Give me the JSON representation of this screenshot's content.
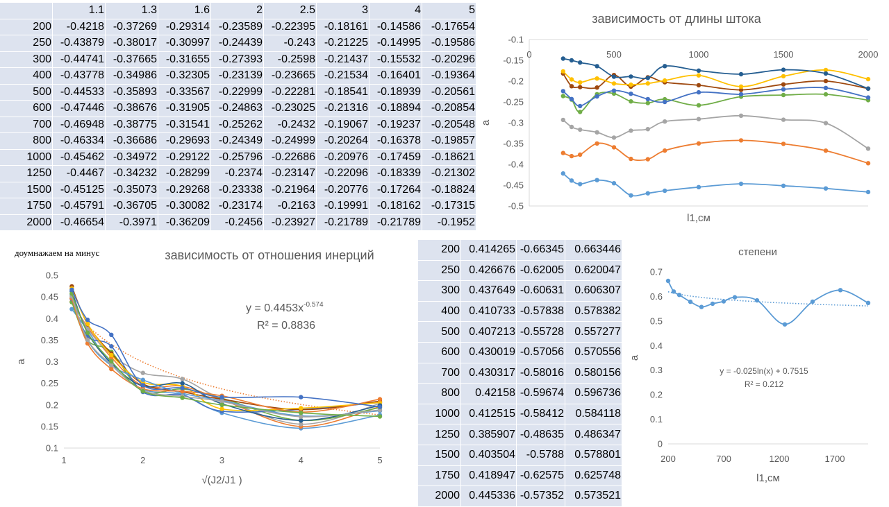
{
  "table1": {
    "columns": [
      "1.1",
      "1.3",
      "1.6",
      "2",
      "2.5",
      "3",
      "4",
      "5"
    ],
    "rows": [
      {
        "l": "200",
        "v": [
          "-0.4218",
          "-0.37269",
          "-0.29314",
          "-0.23589",
          "-0.22395",
          "-0.18161",
          "-0.14586",
          "-0.17654"
        ]
      },
      {
        "l": "250",
        "v": [
          "-0.43879",
          "-0.38017",
          "-0.30997",
          "-0.24439",
          "-0.243",
          "-0.21225",
          "-0.14995",
          "-0.19586"
        ]
      },
      {
        "l": "300",
        "v": [
          "-0.44741",
          "-0.37665",
          "-0.31655",
          "-0.27393",
          "-0.2598",
          "-0.21437",
          "-0.15532",
          "-0.20296"
        ]
      },
      {
        "l": "400",
        "v": [
          "-0.43778",
          "-0.34986",
          "-0.32305",
          "-0.23139",
          "-0.23665",
          "-0.21534",
          "-0.16401",
          "-0.19364"
        ]
      },
      {
        "l": "500",
        "v": [
          "-0.44533",
          "-0.35893",
          "-0.33567",
          "-0.22999",
          "-0.22281",
          "-0.18541",
          "-0.18939",
          "-0.20561"
        ]
      },
      {
        "l": "600",
        "v": [
          "-0.47446",
          "-0.38676",
          "-0.31905",
          "-0.24863",
          "-0.23025",
          "-0.21316",
          "-0.18894",
          "-0.20854"
        ]
      },
      {
        "l": "700",
        "v": [
          "-0.46948",
          "-0.38775",
          "-0.31541",
          "-0.25262",
          "-0.2432",
          "-0.19067",
          "-0.19237",
          "-0.20548"
        ]
      },
      {
        "l": "800",
        "v": [
          "-0.46334",
          "-0.36686",
          "-0.29693",
          "-0.24349",
          "-0.24999",
          "-0.20264",
          "-0.16378",
          "-0.19857"
        ]
      },
      {
        "l": "1000",
        "v": [
          "-0.45462",
          "-0.34972",
          "-0.29122",
          "-0.25796",
          "-0.22686",
          "-0.20976",
          "-0.17459",
          "-0.18621"
        ]
      },
      {
        "l": "1250",
        "v": [
          "-0.4467",
          "-0.34232",
          "-0.28299",
          "-0.2374",
          "-0.23147",
          "-0.22096",
          "-0.18339",
          "-0.21302"
        ]
      },
      {
        "l": "1500",
        "v": [
          "-0.45125",
          "-0.35073",
          "-0.29268",
          "-0.23338",
          "-0.21964",
          "-0.20776",
          "-0.17264",
          "-0.18824"
        ]
      },
      {
        "l": "1750",
        "v": [
          "-0.45791",
          "-0.36705",
          "-0.30082",
          "-0.23174",
          "-0.2163",
          "-0.19991",
          "-0.18162",
          "-0.17315"
        ]
      },
      {
        "l": "2000",
        "v": [
          "-0.46654",
          "-0.3971",
          "-0.36209",
          "-0.2456",
          "-0.23927",
          "-0.21789",
          "-0.21789",
          "-0.1952"
        ]
      }
    ]
  },
  "table2": {
    "rows": [
      [
        "200",
        "0.414265",
        "-0.66345",
        "0.663446"
      ],
      [
        "250",
        "0.426676",
        "-0.62005",
        "0.620047"
      ],
      [
        "300",
        "0.437649",
        "-0.60631",
        "0.606307"
      ],
      [
        "400",
        "0.410733",
        "-0.57838",
        "0.578382"
      ],
      [
        "500",
        "0.407213",
        "-0.55728",
        "0.557277"
      ],
      [
        "600",
        "0.430019",
        "-0.57056",
        "0.570556"
      ],
      [
        "700",
        "0.430317",
        "-0.58016",
        "0.580156"
      ],
      [
        "800",
        "0.42158",
        "-0.59674",
        "0.596736"
      ],
      [
        "1000",
        "0.412515",
        "-0.58412",
        "0.584118"
      ],
      [
        "1250",
        "0.385907",
        "-0.48635",
        "0.486347"
      ],
      [
        "1500",
        "0.403504",
        "-0.5788",
        "0.578801"
      ],
      [
        "1750",
        "0.418947",
        "-0.62575",
        "0.625748"
      ],
      [
        "2000",
        "0.445336",
        "-0.57352",
        "0.573521"
      ]
    ]
  },
  "note": "доумнажаем на минус",
  "colors": {
    "series": [
      "#5b9bd5",
      "#ed7d31",
      "#a5a5a5",
      "#70ad47",
      "#4472c4",
      "#9e480e",
      "#ffc000",
      "#255e91"
    ],
    "axis": "#d9d9d9",
    "text": "#595959"
  },
  "chart_data": [
    {
      "type": "line",
      "title": "зависимость от длины штока",
      "xlabel": "l1,см",
      "ylabel": "a",
      "xlim": [
        0,
        2000
      ],
      "ylim": [
        -0.5,
        -0.1
      ],
      "xticks": [
        0,
        500,
        1000,
        1500,
        2000
      ],
      "yticks": [
        -0.1,
        -0.15,
        -0.2,
        -0.25,
        -0.3,
        -0.35,
        -0.4,
        -0.45,
        -0.5
      ],
      "x": [
        200,
        250,
        300,
        400,
        500,
        600,
        700,
        800,
        1000,
        1250,
        1500,
        1750,
        2000
      ],
      "series": [
        {
          "values": [
            -0.4218,
            -0.43879,
            -0.44741,
            -0.43778,
            -0.44533,
            -0.47446,
            -0.46948,
            -0.46334,
            -0.45462,
            -0.4467,
            -0.45125,
            -0.45791,
            -0.46654
          ]
        },
        {
          "values": [
            -0.37269,
            -0.38017,
            -0.37665,
            -0.34986,
            -0.35893,
            -0.38676,
            -0.38775,
            -0.36686,
            -0.34972,
            -0.34232,
            -0.35073,
            -0.36705,
            -0.3971
          ]
        },
        {
          "values": [
            -0.29314,
            -0.30997,
            -0.31655,
            -0.32305,
            -0.33567,
            -0.31905,
            -0.31541,
            -0.29693,
            -0.29122,
            -0.28299,
            -0.29268,
            -0.30082,
            -0.36209
          ]
        },
        {
          "values": [
            -0.23589,
            -0.24439,
            -0.27393,
            -0.23139,
            -0.22999,
            -0.24863,
            -0.25262,
            -0.24349,
            -0.25796,
            -0.2374,
            -0.23338,
            -0.23174,
            -0.2456
          ]
        },
        {
          "values": [
            -0.22395,
            -0.243,
            -0.2598,
            -0.23665,
            -0.22281,
            -0.23025,
            -0.2432,
            -0.24999,
            -0.22686,
            -0.23147,
            -0.21964,
            -0.2163,
            -0.23927
          ]
        },
        {
          "values": [
            -0.18161,
            -0.21225,
            -0.21437,
            -0.21534,
            -0.18541,
            -0.21316,
            -0.19067,
            -0.20264,
            -0.20976,
            -0.22096,
            -0.20776,
            -0.19991,
            -0.21789
          ]
        },
        {
          "values": [
            -0.17654,
            -0.19586,
            -0.20296,
            -0.19364,
            -0.20561,
            -0.20854,
            -0.20548,
            -0.19857,
            -0.18621,
            -0.21302,
            -0.18824,
            -0.17315,
            -0.1952
          ]
        },
        {
          "values": [
            -0.14586,
            -0.14995,
            -0.15532,
            -0.16401,
            -0.18939,
            -0.18894,
            -0.19237,
            -0.16378,
            -0.17459,
            -0.18339,
            -0.17264,
            -0.18162,
            -0.21789
          ]
        }
      ]
    },
    {
      "type": "line",
      "title": "зависимость от отношения инерций",
      "xlabel": "√(J2/J1 )",
      "ylabel": "a",
      "xlim": [
        1,
        5
      ],
      "ylim": [
        0.1,
        0.5
      ],
      "xticks": [
        1,
        2,
        3,
        4,
        5
      ],
      "yticks": [
        0.5,
        0.45,
        0.4,
        0.35,
        0.3,
        0.25,
        0.2,
        0.15,
        0.1
      ],
      "x": [
        1.1,
        1.3,
        1.6,
        2,
        2.5,
        3,
        4,
        5
      ],
      "series": [
        {
          "values": [
            0.4218,
            0.37269,
            0.29314,
            0.23589,
            0.22395,
            0.18161,
            0.14586,
            0.17654
          ]
        },
        {
          "values": [
            0.43879,
            0.38017,
            0.30997,
            0.24439,
            0.243,
            0.21225,
            0.14995,
            0.19586
          ]
        },
        {
          "values": [
            0.44741,
            0.37665,
            0.31655,
            0.27393,
            0.2598,
            0.21437,
            0.15532,
            0.20296
          ]
        },
        {
          "values": [
            0.43778,
            0.34986,
            0.32305,
            0.23139,
            0.23665,
            0.21534,
            0.16401,
            0.19364
          ]
        },
        {
          "values": [
            0.44533,
            0.35893,
            0.33567,
            0.22999,
            0.22281,
            0.18541,
            0.18939,
            0.20561
          ]
        },
        {
          "values": [
            0.47446,
            0.38676,
            0.31905,
            0.24863,
            0.23025,
            0.21316,
            0.18894,
            0.20854
          ]
        },
        {
          "values": [
            0.46948,
            0.38775,
            0.31541,
            0.25262,
            0.2432,
            0.19067,
            0.19237,
            0.20548
          ]
        },
        {
          "values": [
            0.46334,
            0.36686,
            0.29693,
            0.24349,
            0.24999,
            0.20264,
            0.16378,
            0.19857
          ]
        },
        {
          "values": [
            0.45462,
            0.34972,
            0.29122,
            0.25796,
            0.22686,
            0.20976,
            0.17459,
            0.18621
          ]
        },
        {
          "values": [
            0.4467,
            0.34232,
            0.28299,
            0.2374,
            0.23147,
            0.22096,
            0.18339,
            0.21302
          ]
        },
        {
          "values": [
            0.45125,
            0.35073,
            0.29268,
            0.23338,
            0.21964,
            0.20776,
            0.17264,
            0.18824
          ]
        },
        {
          "values": [
            0.45791,
            0.36705,
            0.30082,
            0.23174,
            0.2163,
            0.19991,
            0.18162,
            0.17315
          ]
        },
        {
          "values": [
            0.46654,
            0.3971,
            0.36209,
            0.2456,
            0.23927,
            0.21789,
            0.21789,
            0.1952
          ]
        }
      ],
      "trendline": {
        "type": "power",
        "a": 0.4453,
        "b": -0.574
      },
      "equation": "y = 0.4453x",
      "equation_exp": "-0.574",
      "r2": "R² = 0.8836"
    },
    {
      "type": "line",
      "title": "степени",
      "xlabel": "l1,см",
      "ylabel": "a",
      "xlim": [
        200,
        2000
      ],
      "ylim": [
        0,
        0.7
      ],
      "xticks": [
        200,
        700,
        1200,
        1700
      ],
      "yticks": [
        0.7,
        0.6,
        0.5,
        0.4,
        0.3,
        0.2,
        0.1,
        0
      ],
      "x": [
        200,
        250,
        300,
        400,
        500,
        600,
        700,
        800,
        1000,
        1250,
        1500,
        1750,
        2000
      ],
      "series": [
        {
          "values": [
            0.663446,
            0.620047,
            0.606307,
            0.578382,
            0.557277,
            0.570556,
            0.580156,
            0.596736,
            0.584118,
            0.486347,
            0.578801,
            0.625748,
            0.573521
          ]
        }
      ],
      "trendline": {
        "type": "log",
        "a": -0.025,
        "b": 0.7515
      },
      "equation": "y = -0.025ln(x) + 0.7515",
      "r2": "R² = 0.212"
    }
  ]
}
